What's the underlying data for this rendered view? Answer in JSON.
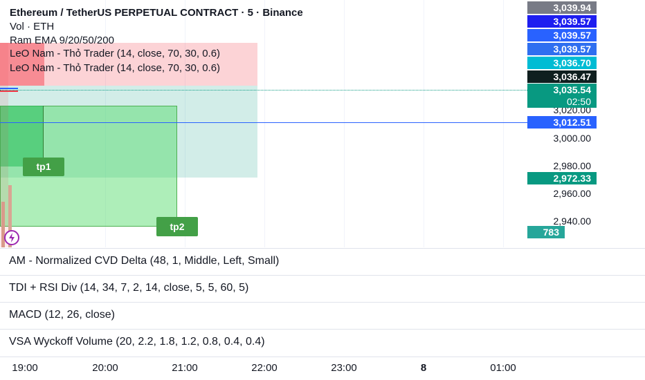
{
  "legend": {
    "symbol_title": "Ethereum / TetherUS PERPETUAL CONTRACT · 5 · Binance",
    "vol": "Vol · ETH",
    "ema": "Ram EMA 9/20/50/200",
    "indicator_1": "LeO Nam - Thỏ Trader (14, close, 70, 30, 0.6)",
    "indicator_2": "LeO Nam - Thỏ Trader (14, close, 70, 30, 0.6)"
  },
  "price_tags": [
    {
      "value": "3,039.94",
      "color": "#787b86"
    },
    {
      "value": "3,039.57",
      "color": "#1e1ef0"
    },
    {
      "value": "3,039.57",
      "color": "#2962ff"
    },
    {
      "value": "3,039.57",
      "color": "#2f6ff0"
    },
    {
      "value": "3,036.70",
      "color": "#00bcd4"
    },
    {
      "value": "3,036.47",
      "color": "#0f1f1f"
    },
    {
      "value": "3,035.54",
      "color": "#089981"
    },
    {
      "value": "02:50",
      "color": "#089981"
    },
    {
      "value": "3,012.51",
      "color": "#2962ff"
    },
    {
      "value": "2,972.33",
      "color": "#089981"
    },
    {
      "value": "783",
      "color": "#26a69a"
    }
  ],
  "price_axis": [
    "3,020.00",
    "3,000.00",
    "2,980.00",
    "2,960.00",
    "2,940.00"
  ],
  "targets": {
    "tp1": "tp1",
    "tp2": "tp2"
  },
  "panes": [
    "AM - Normalized CVD Delta (48, 1, Middle, Left, Small)",
    "TDI + RSI Div (14, 34, 7, 2, 14, close, 5, 5, 60, 5)",
    "MACD (12, 26, close)",
    "VSA Wyckoff Volume (20, 2.2, 1.8, 1.2, 0.8, 0.4, 0.4)"
  ],
  "time_axis": [
    "19:00",
    "20:00",
    "21:00",
    "22:00",
    "23:00",
    "8",
    "01:00"
  ],
  "icons": {
    "alert": "lightning-icon"
  }
}
